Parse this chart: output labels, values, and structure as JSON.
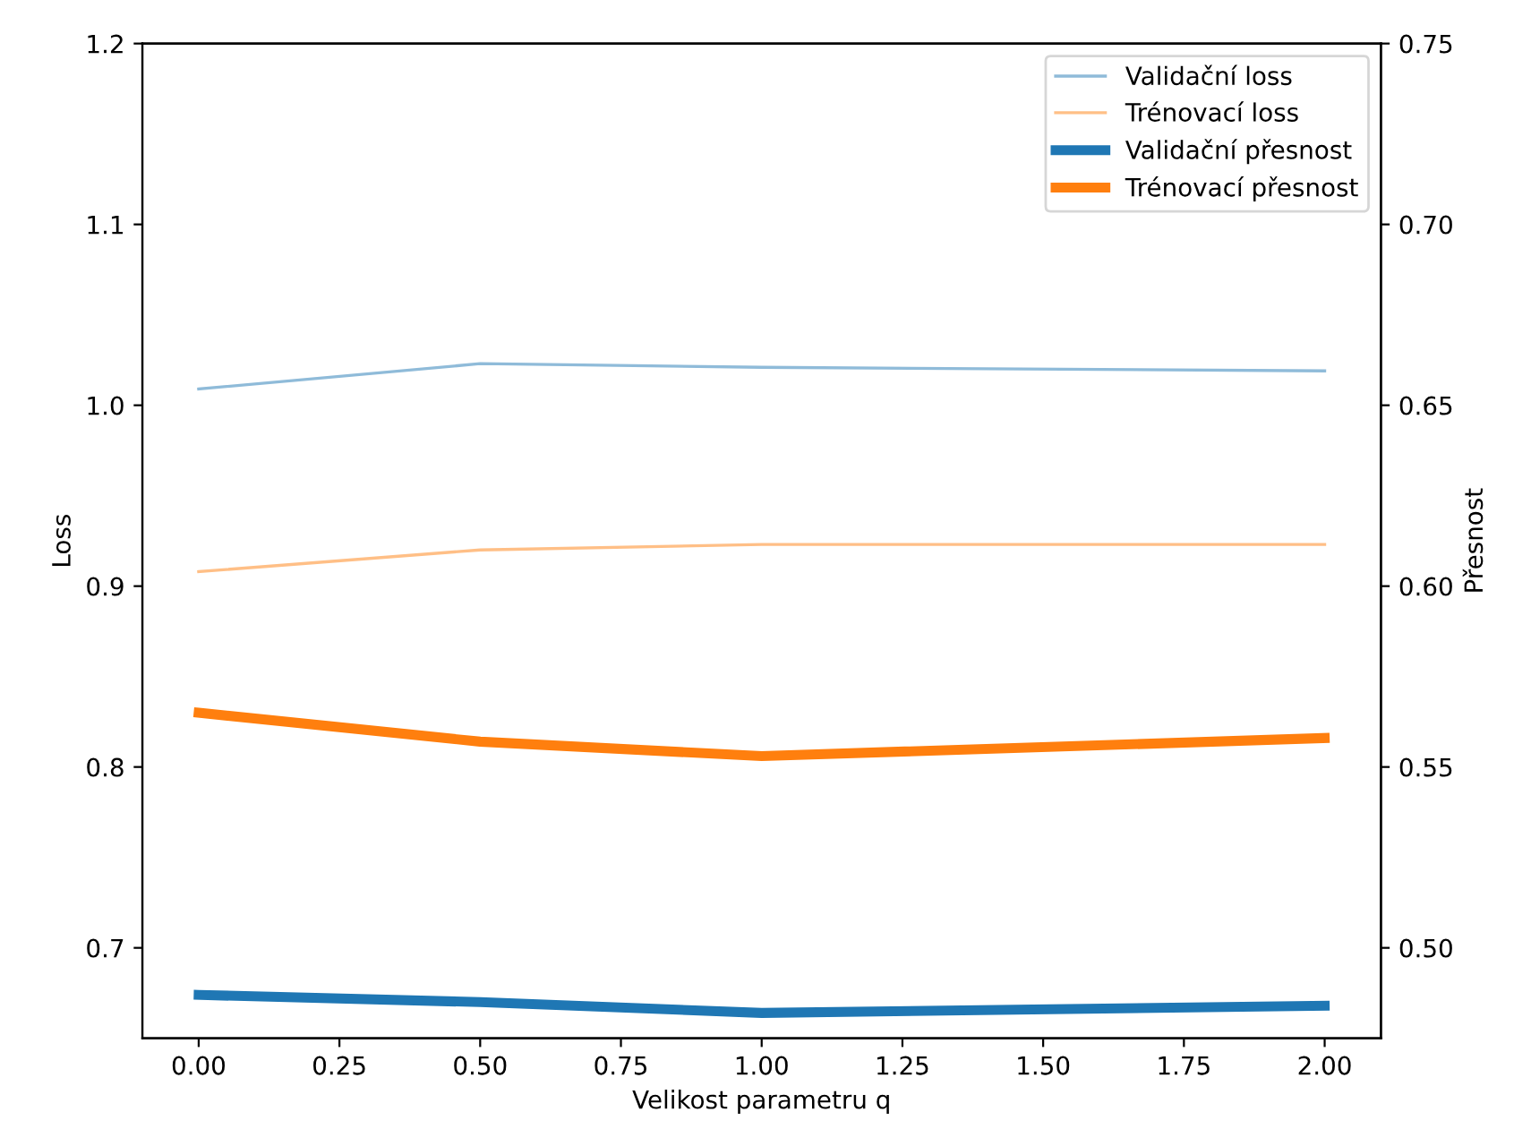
{
  "chart_data": {
    "type": "line",
    "xlabel": "Velikost parametru q",
    "ylabel": "Loss",
    "y2label": "Přesnost",
    "x": [
      0,
      0.5,
      1,
      2
    ],
    "xlim": [
      -0.1,
      2.1
    ],
    "xticks": [
      {
        "value": 0,
        "label": "0.00"
      },
      {
        "value": 0.25,
        "label": "0.25"
      },
      {
        "value": 0.5,
        "label": "0.50"
      },
      {
        "value": 0.75,
        "label": "0.75"
      },
      {
        "value": 1,
        "label": "1.00"
      },
      {
        "value": 1.25,
        "label": "1.25"
      },
      {
        "value": 1.5,
        "label": "1.50"
      },
      {
        "value": 1.75,
        "label": "1.75"
      },
      {
        "value": 2,
        "label": "2.00"
      }
    ],
    "ylim": [
      0.65,
      1.2
    ],
    "yticks": [
      0.7,
      0.8,
      0.9,
      {
        "value": 1.0,
        "label": "1.0"
      },
      1.1,
      1.2
    ],
    "y2lim": [
      0.475,
      0.75
    ],
    "y2ticks": [
      {
        "value": 0.5,
        "label": "0.50"
      },
      0.55,
      {
        "value": 0.6,
        "label": "0.60"
      },
      0.65,
      {
        "value": 0.7,
        "label": "0.70"
      },
      0.75
    ],
    "series": [
      {
        "name": "Validační loss",
        "color": "#8fbbd9",
        "values": [
          1.009,
          1.023,
          1.021,
          1.019
        ]
      },
      {
        "name": "Trénovací loss",
        "color": "#ffbf86",
        "values": [
          0.908,
          0.92,
          0.923,
          0.923
        ]
      },
      {
        "name": "Validační přesnost",
        "color": "#1f77b4",
        "axis": "y2",
        "values": [
          0.487,
          0.485,
          0.482,
          0.484
        ]
      },
      {
        "name": "Trénovací přesnost",
        "color": "#ff7f0e",
        "axis": "y2",
        "values": [
          0.565,
          0.557,
          0.553,
          0.558
        ]
      }
    ],
    "grid": false,
    "legend": "top right",
    "marker": "none",
    "line_style": "solid"
  }
}
